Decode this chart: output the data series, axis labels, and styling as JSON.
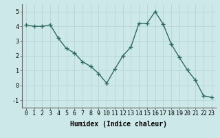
{
  "x": [
    0,
    1,
    2,
    3,
    4,
    5,
    6,
    7,
    8,
    9,
    10,
    11,
    12,
    13,
    14,
    15,
    16,
    17,
    18,
    19,
    20,
    21,
    22,
    23
  ],
  "y": [
    4.1,
    4.0,
    4.0,
    4.1,
    3.2,
    2.5,
    2.2,
    1.6,
    1.3,
    0.8,
    0.15,
    1.1,
    2.0,
    2.6,
    4.2,
    4.2,
    5.0,
    4.15,
    2.8,
    1.9,
    1.05,
    0.35,
    -0.7,
    -0.8
  ],
  "line_color": "#2e6b5e",
  "marker": "+",
  "bg_color": "#cce8e8",
  "grid_color": "#b8d4d4",
  "xlabel": "Humidex (Indice chaleur)",
  "ylim": [
    -1.5,
    5.5
  ],
  "xlim": [
    -0.5,
    23.5
  ],
  "yticks": [
    -1,
    0,
    1,
    2,
    3,
    4,
    5
  ],
  "xticks": [
    0,
    1,
    2,
    3,
    4,
    5,
    6,
    7,
    8,
    9,
    10,
    11,
    12,
    13,
    14,
    15,
    16,
    17,
    18,
    19,
    20,
    21,
    22,
    23
  ],
  "xtick_labels": [
    "0",
    "1",
    "2",
    "3",
    "4",
    "5",
    "6",
    "7",
    "8",
    "9",
    "10",
    "11",
    "12",
    "13",
    "14",
    "15",
    "16",
    "17",
    "18",
    "19",
    "20",
    "21",
    "22",
    "23"
  ],
  "xlabel_fontsize": 7,
  "tick_fontsize": 6,
  "linewidth": 1.0,
  "markersize": 4,
  "markeredgewidth": 1.0
}
